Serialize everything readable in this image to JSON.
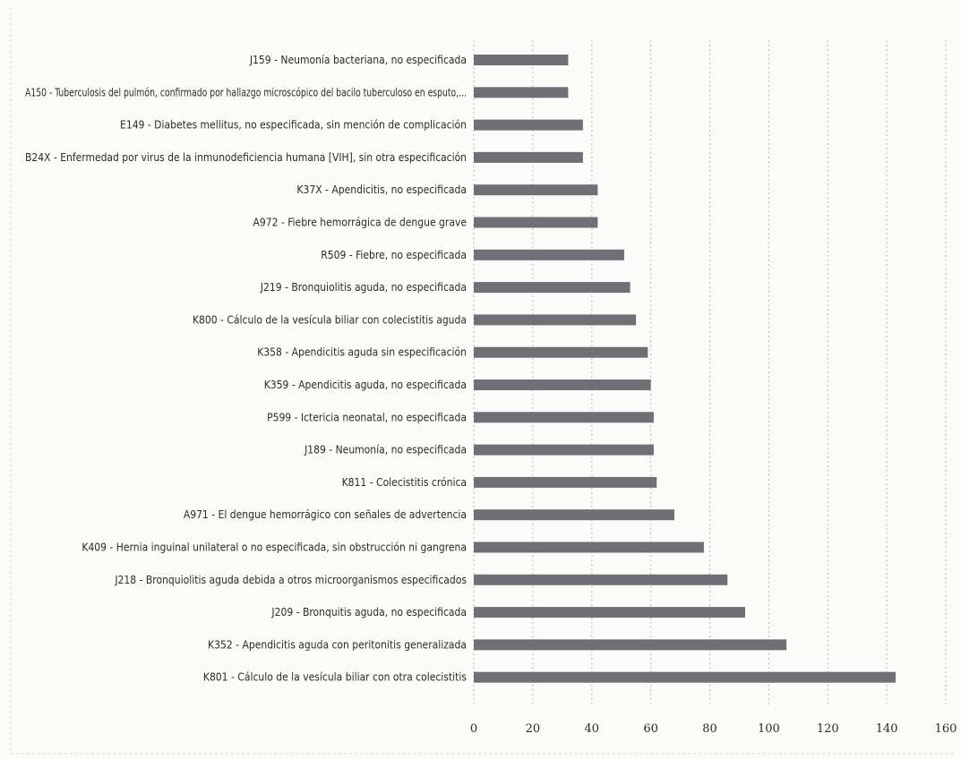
{
  "chart_data": {
    "type": "bar",
    "orientation": "horizontal",
    "title": "",
    "xlabel": "",
    "ylabel": "",
    "categories": [
      "J159 - Neumonía bacteriana, no especificada",
      "A150 - Tuberculosis del pulmón, confirmado por hallazgo microscópico del bacilo tuberculoso en esputo,...",
      "E149 - Diabetes mellitus, no especificada, sin mención de complicación",
      "B24X - Enfermedad por virus de la inmunodeficiencia humana [VIH], sin otra especificación",
      "K37X - Apendicitis, no especificada",
      "A972 - Fiebre hemorrágica de dengue grave",
      "R509 - Fiebre, no especificada",
      "J219 - Bronquiolitis aguda, no especificada",
      "K800 - Cálculo de la vesícula biliar con colecistitis aguda",
      "K358 - Apendicitis aguda sin especificación",
      "K359 - Apendicitis aguda, no especificada",
      "P599 - Ictericia neonatal, no especificada",
      "J189 - Neumonía, no especificada",
      "K811 - Colecistitis crónica",
      "A971 - El dengue hemorrágico con señales de advertencia",
      "K409 - Hernia inguinal unilateral o no especificada, sin obstrucción ni gangrena",
      "J218 - Bronquiolitis aguda debida a otros microorganismos especificados",
      "J209 - Bronquitis aguda, no especificada",
      "K352 - Apendicitis aguda con peritonitis generalizada",
      "K801 - Cálculo de la vesícula biliar con otra colecistitis"
    ],
    "values": [
      32,
      32,
      37,
      37,
      42,
      42,
      51,
      53,
      55,
      59,
      60,
      61,
      61,
      62,
      68,
      78,
      86,
      92,
      106,
      143
    ],
    "xlim": [
      0,
      160
    ],
    "xticks": [
      0,
      20,
      40,
      60,
      80,
      100,
      120,
      140,
      160
    ],
    "grid": true,
    "legend": "none",
    "bar_color": "#6f6f75"
  }
}
